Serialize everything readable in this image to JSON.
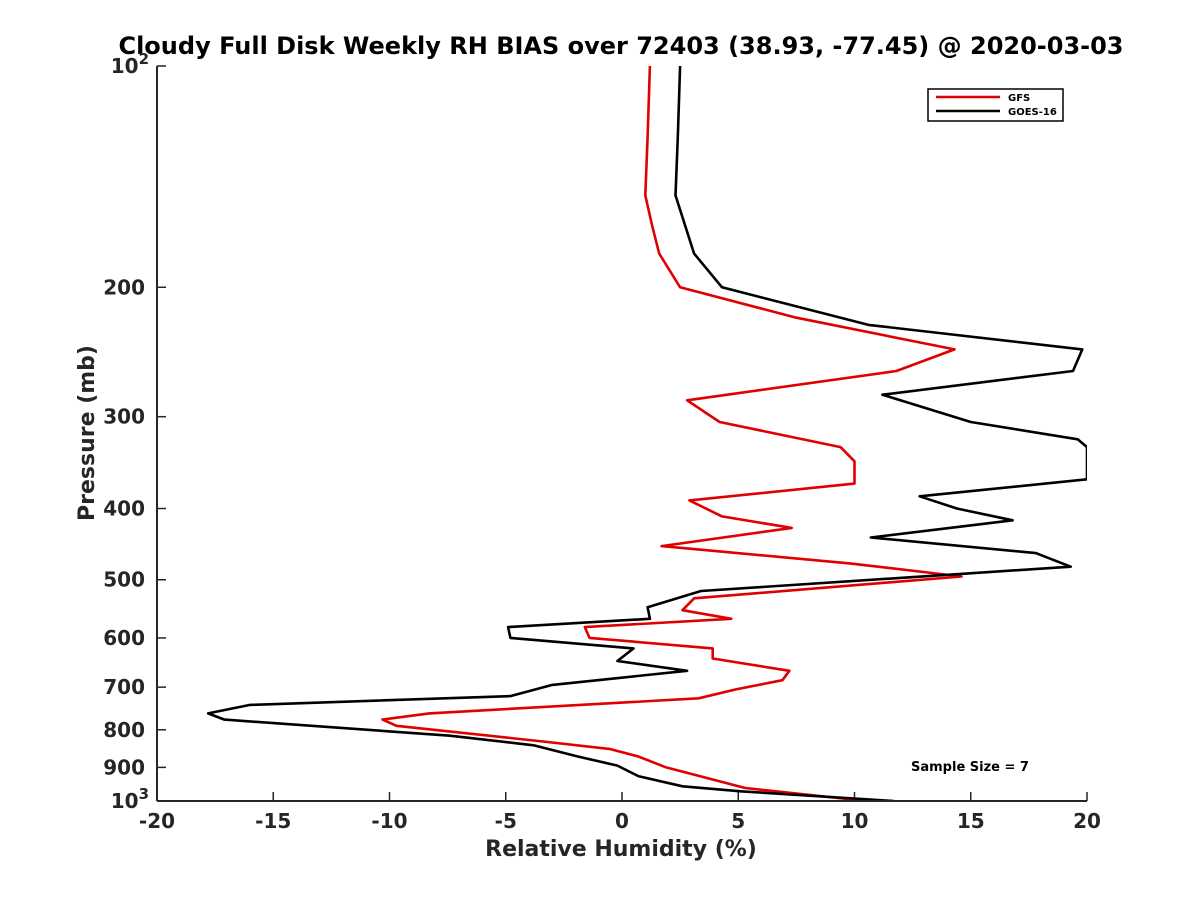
{
  "chart_data": {
    "type": "line",
    "title": "Cloudy Full Disk Weekly RH BIAS over 72403 (38.93, -77.45) @ 2020-03-03",
    "xlabel": "Relative Humidity (%)",
    "ylabel": "Pressure (mb)",
    "xlim": [
      -20,
      20
    ],
    "ylim": [
      100,
      1000
    ],
    "y_scale": "log",
    "y_reversed": true,
    "grid": false,
    "legend_position": "top-right",
    "x_ticks": [
      -20,
      -15,
      -10,
      -5,
      0,
      5,
      10,
      15,
      20
    ],
    "y_ticks": [
      {
        "value": 100,
        "base": "10",
        "exp": "2",
        "label": ""
      },
      {
        "value": 200,
        "label": "200"
      },
      {
        "value": 300,
        "label": "300"
      },
      {
        "value": 400,
        "label": "400"
      },
      {
        "value": 500,
        "label": "500"
      },
      {
        "value": 600,
        "label": "600"
      },
      {
        "value": 700,
        "label": "700"
      },
      {
        "value": 800,
        "label": "800"
      },
      {
        "value": 900,
        "label": "900"
      },
      {
        "value": 1000,
        "base": "10",
        "exp": "3",
        "label": ""
      }
    ],
    "annotation": "Sample Size = 7",
    "series": [
      {
        "name": "GFS",
        "color": "#e00000",
        "points": [
          [
            1.2,
            100
          ],
          [
            1.1,
            125
          ],
          [
            1.0,
            150
          ],
          [
            1.3,
            165
          ],
          [
            1.6,
            180
          ],
          [
            2.5,
            200
          ],
          [
            7.5,
            220
          ],
          [
            14.3,
            243
          ],
          [
            11.8,
            260
          ],
          [
            2.8,
            285
          ],
          [
            4.2,
            305
          ],
          [
            9.4,
            330
          ],
          [
            10.0,
            345
          ],
          [
            10.0,
            370
          ],
          [
            2.9,
            390
          ],
          [
            4.3,
            410
          ],
          [
            7.3,
            425
          ],
          [
            1.7,
            450
          ],
          [
            9.8,
            475
          ],
          [
            14.6,
            495
          ],
          [
            3.1,
            530
          ],
          [
            2.6,
            550
          ],
          [
            4.7,
            565
          ],
          [
            -1.6,
            580
          ],
          [
            -1.4,
            600
          ],
          [
            3.9,
            620
          ],
          [
            3.9,
            640
          ],
          [
            7.2,
            665
          ],
          [
            6.9,
            685
          ],
          [
            4.9,
            705
          ],
          [
            3.3,
            725
          ],
          [
            -8.3,
            760
          ],
          [
            -10.3,
            775
          ],
          [
            -9.7,
            790
          ],
          [
            -3.4,
            830
          ],
          [
            -0.5,
            850
          ],
          [
            0.7,
            870
          ],
          [
            1.9,
            900
          ],
          [
            3.9,
            935
          ],
          [
            5.3,
            960
          ],
          [
            10.5,
            1000
          ]
        ]
      },
      {
        "name": "GOES-16",
        "color": "#000000",
        "points": [
          [
            2.5,
            100
          ],
          [
            2.4,
            125
          ],
          [
            2.3,
            150
          ],
          [
            3.1,
            180
          ],
          [
            4.3,
            200
          ],
          [
            10.6,
            225
          ],
          [
            19.8,
            243
          ],
          [
            19.4,
            260
          ],
          [
            11.2,
            280
          ],
          [
            15.0,
            305
          ],
          [
            19.6,
            322
          ],
          [
            20.0,
            330
          ],
          [
            20.0,
            350
          ],
          [
            20.0,
            365
          ],
          [
            12.8,
            385
          ],
          [
            14.4,
            400
          ],
          [
            16.8,
            415
          ],
          [
            10.7,
            438
          ],
          [
            17.8,
            460
          ],
          [
            19.3,
            480
          ],
          [
            3.4,
            518
          ],
          [
            1.1,
            545
          ],
          [
            1.2,
            565
          ],
          [
            -4.9,
            580
          ],
          [
            -4.8,
            600
          ],
          [
            0.5,
            620
          ],
          [
            -0.2,
            645
          ],
          [
            2.8,
            665
          ],
          [
            -3.0,
            695
          ],
          [
            -4.8,
            720
          ],
          [
            -16.0,
            740
          ],
          [
            -17.8,
            760
          ],
          [
            -17.1,
            775
          ],
          [
            -7.4,
            815
          ],
          [
            -3.8,
            840
          ],
          [
            -1.9,
            870
          ],
          [
            -0.2,
            895
          ],
          [
            0.7,
            925
          ],
          [
            2.6,
            955
          ],
          [
            5.1,
            970
          ],
          [
            11.7,
            1000
          ]
        ]
      }
    ]
  }
}
